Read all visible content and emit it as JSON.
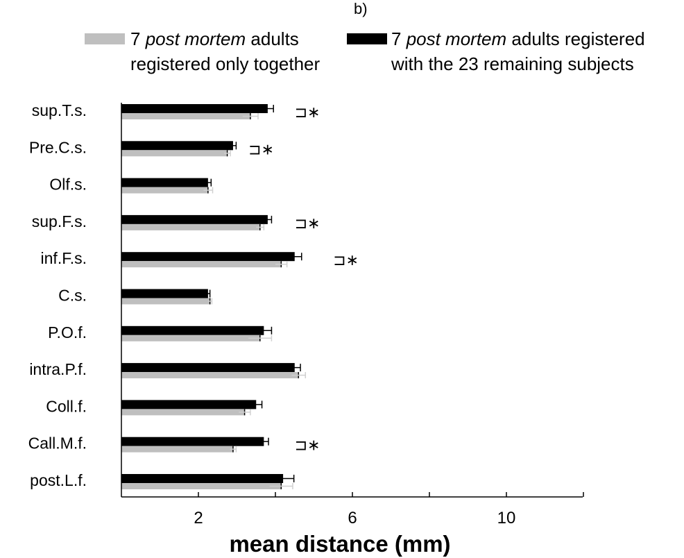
{
  "panel_label": "b)",
  "colors": {
    "series_a": "#bfbfbf",
    "series_b": "#000000",
    "error_a": "#d0d0d0",
    "error_b": "#000000"
  },
  "legend": {
    "item1": {
      "prefix": "7 ",
      "italic": "post mortem",
      "suffix": " adults",
      "line2": "registered only together"
    },
    "item2": {
      "prefix": "7 ",
      "italic": "post mortem",
      "suffix": " adults registered",
      "line2": "with the 23 remaining subjects"
    }
  },
  "chart_data": {
    "type": "bar",
    "orientation": "horizontal",
    "xlabel": "mean distance (mm)",
    "ylabel": "",
    "xlim": [
      0,
      12.1
    ],
    "xticks": [
      2,
      6,
      10
    ],
    "xtick_marks": [
      2,
      4,
      6,
      8,
      10,
      12
    ],
    "grid": false,
    "legend_position": "top",
    "categories": [
      "sup.T.s.",
      "Pre.C.s.",
      "Olf.s.",
      "sup.F.s.",
      "inf.F.s.",
      "C.s.",
      "P.O.f.",
      "intra.P.f.",
      "Coll.f.",
      "Call.M.f.",
      "post.L.f."
    ],
    "series": [
      {
        "name": "7 post mortem adults registered with the 23 remaining subjects",
        "values": [
          3.8,
          2.9,
          2.25,
          3.8,
          4.5,
          2.25,
          3.7,
          4.5,
          3.5,
          3.7,
          4.2
        ],
        "errors": [
          0.15,
          0.08,
          0.08,
          0.1,
          0.18,
          0.05,
          0.2,
          0.15,
          0.15,
          0.12,
          0.28
        ]
      },
      {
        "name": "7 post mortem adults registered only together",
        "values": [
          3.35,
          2.75,
          2.25,
          3.6,
          4.15,
          2.3,
          3.6,
          4.6,
          3.2,
          2.9,
          4.15
        ],
        "errors": [
          0.2,
          0.08,
          0.12,
          0.1,
          0.15,
          0.05,
          0.3,
          0.18,
          0.15,
          0.08,
          0.3
        ]
      }
    ],
    "significance": [
      {
        "category": "sup.T.s.",
        "x": 4.5,
        "label": "⊐∗"
      },
      {
        "category": "Pre.C.s.",
        "x": 3.3,
        "label": "⊐∗"
      },
      {
        "category": "sup.F.s.",
        "x": 4.5,
        "label": "⊐∗"
      },
      {
        "category": "inf.F.s.",
        "x": 5.5,
        "label": "⊐∗"
      },
      {
        "category": "Call.M.f.",
        "x": 4.5,
        "label": "⊐∗"
      }
    ]
  }
}
